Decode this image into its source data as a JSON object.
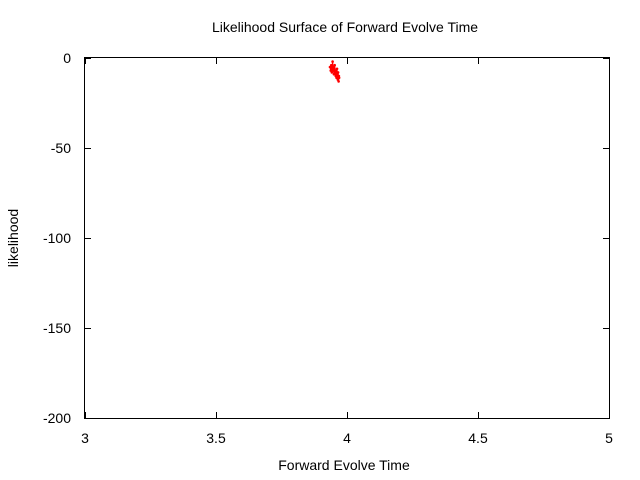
{
  "chart_data": {
    "type": "line",
    "title": "Likelihood Surface of Forward Evolve Time",
    "xlabel": "Forward Evolve Time",
    "ylabel": "likelihood",
    "xlim": [
      3,
      5
    ],
    "ylim": [
      -200,
      0
    ],
    "x_ticks": [
      "3",
      "3.5",
      "4",
      "4.5",
      "5"
    ],
    "y_ticks": [
      "0",
      "-50",
      "-100",
      "-150",
      "-200"
    ],
    "grid": false,
    "legend": "none",
    "series_color": "#ff0000",
    "series": [
      {
        "x": [
          3.935,
          3.938,
          3.94,
          3.942,
          3.944,
          3.945,
          3.947,
          3.948,
          3.95,
          3.952,
          3.953,
          3.955,
          3.957,
          3.958,
          3.96,
          3.962,
          3.963,
          3.965,
          3.966,
          3.968,
          3.969,
          3.97
        ],
        "y": [
          -5,
          -7,
          -4,
          -8,
          -6,
          -2,
          -7,
          -5,
          -9,
          -6,
          -4,
          -8,
          -10,
          -7,
          -11,
          -6,
          -9,
          -12,
          -8,
          -13,
          -10,
          -11
        ]
      }
    ]
  }
}
